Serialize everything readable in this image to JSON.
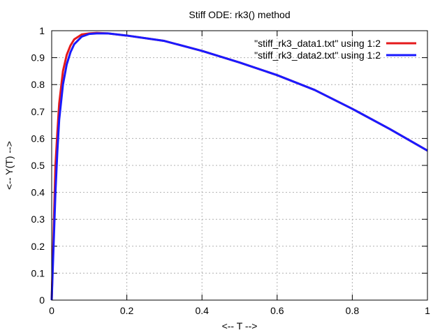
{
  "chart_data": {
    "type": "line",
    "title": "Stiff ODE: rk3() method",
    "xlabel": "<-- T -->",
    "ylabel": "<-- Y(T) -->",
    "xlim": [
      0,
      1
    ],
    "ylim": [
      0,
      1
    ],
    "xticks": [
      "0",
      "0.2",
      "0.4",
      "0.6",
      "0.8",
      "1"
    ],
    "yticks": [
      "0",
      "0.1",
      "0.2",
      "0.3",
      "0.4",
      "0.5",
      "0.6",
      "0.7",
      "0.8",
      "0.9",
      "1"
    ],
    "grid": true,
    "legend_position": "top-right",
    "series": [
      {
        "name": "\"stiff_rk3_data1.txt\" using 1:2",
        "color": "#e41a1c",
        "x": [
          0,
          0.005,
          0.01,
          0.015,
          0.02,
          0.03,
          0.04,
          0.05,
          0.06,
          0.08,
          0.1,
          0.12,
          0.15,
          0.2,
          0.3,
          0.4,
          0.5,
          0.6,
          0.7,
          0.8,
          0.9,
          1.0
        ],
        "y": [
          0,
          0.25,
          0.5,
          0.62,
          0.73,
          0.85,
          0.91,
          0.945,
          0.968,
          0.986,
          0.99,
          0.992,
          0.99,
          0.982,
          0.962,
          0.925,
          0.882,
          0.835,
          0.78,
          0.71,
          0.635,
          0.555
        ]
      },
      {
        "name": "\"stiff_rk3_data2.txt\" using 1:2",
        "color": "#1a1aff",
        "x": [
          0,
          0.005,
          0.01,
          0.015,
          0.02,
          0.03,
          0.04,
          0.05,
          0.06,
          0.08,
          0.1,
          0.12,
          0.15,
          0.2,
          0.3,
          0.4,
          0.5,
          0.6,
          0.7,
          0.8,
          0.9,
          1.0
        ],
        "y": [
          0,
          0.2,
          0.4,
          0.55,
          0.67,
          0.8,
          0.875,
          0.92,
          0.95,
          0.978,
          0.988,
          0.99,
          0.99,
          0.982,
          0.962,
          0.925,
          0.882,
          0.835,
          0.78,
          0.71,
          0.635,
          0.555
        ]
      }
    ]
  }
}
